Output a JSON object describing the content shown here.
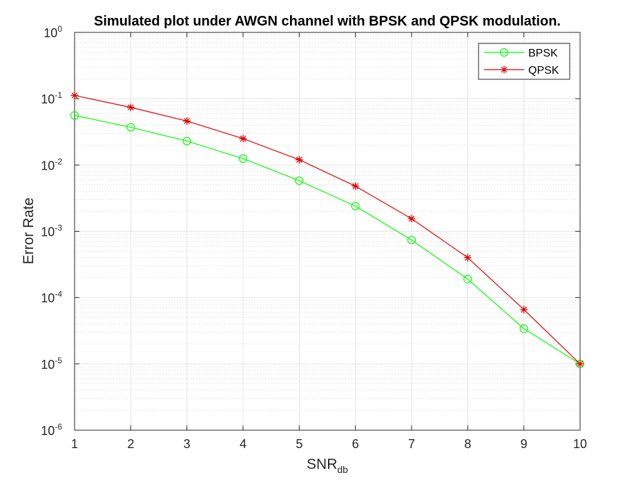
{
  "chart_data": {
    "type": "line",
    "title": "Simulated plot under AWGN channel with BPSK and QPSK modulation.",
    "xlabel_main": "SNR",
    "xlabel_sub": "db",
    "ylabel": "Error Rate",
    "x": [
      1,
      2,
      3,
      4,
      5,
      6,
      7,
      8,
      9,
      10
    ],
    "xlim": [
      1,
      10
    ],
    "ylim": [
      1e-06,
      1
    ],
    "yscale": "log",
    "xticks": [
      "1",
      "2",
      "3",
      "4",
      "5",
      "6",
      "7",
      "8",
      "9",
      "10"
    ],
    "yticks": [
      {
        "base": "10",
        "exp": "-6"
      },
      {
        "base": "10",
        "exp": "-5"
      },
      {
        "base": "10",
        "exp": "-4"
      },
      {
        "base": "10",
        "exp": "-3"
      },
      {
        "base": "10",
        "exp": "-2"
      },
      {
        "base": "10",
        "exp": "-1"
      },
      {
        "base": "10",
        "exp": "0"
      }
    ],
    "grid": true,
    "minor_grid": true,
    "legend_position": "top-right",
    "series": [
      {
        "name": "BPSK",
        "color": "#00ff00",
        "marker": "circle",
        "values": [
          0.056,
          0.037,
          0.023,
          0.0125,
          0.0058,
          0.0024,
          0.00074,
          0.00019,
          3.4e-05,
          1e-05
        ]
      },
      {
        "name": "QPSK",
        "color": "#dd0000",
        "marker": "asterisk",
        "values": [
          0.112,
          0.074,
          0.046,
          0.025,
          0.012,
          0.0048,
          0.00155,
          0.0004,
          6.6e-05,
          1e-05
        ]
      }
    ]
  }
}
